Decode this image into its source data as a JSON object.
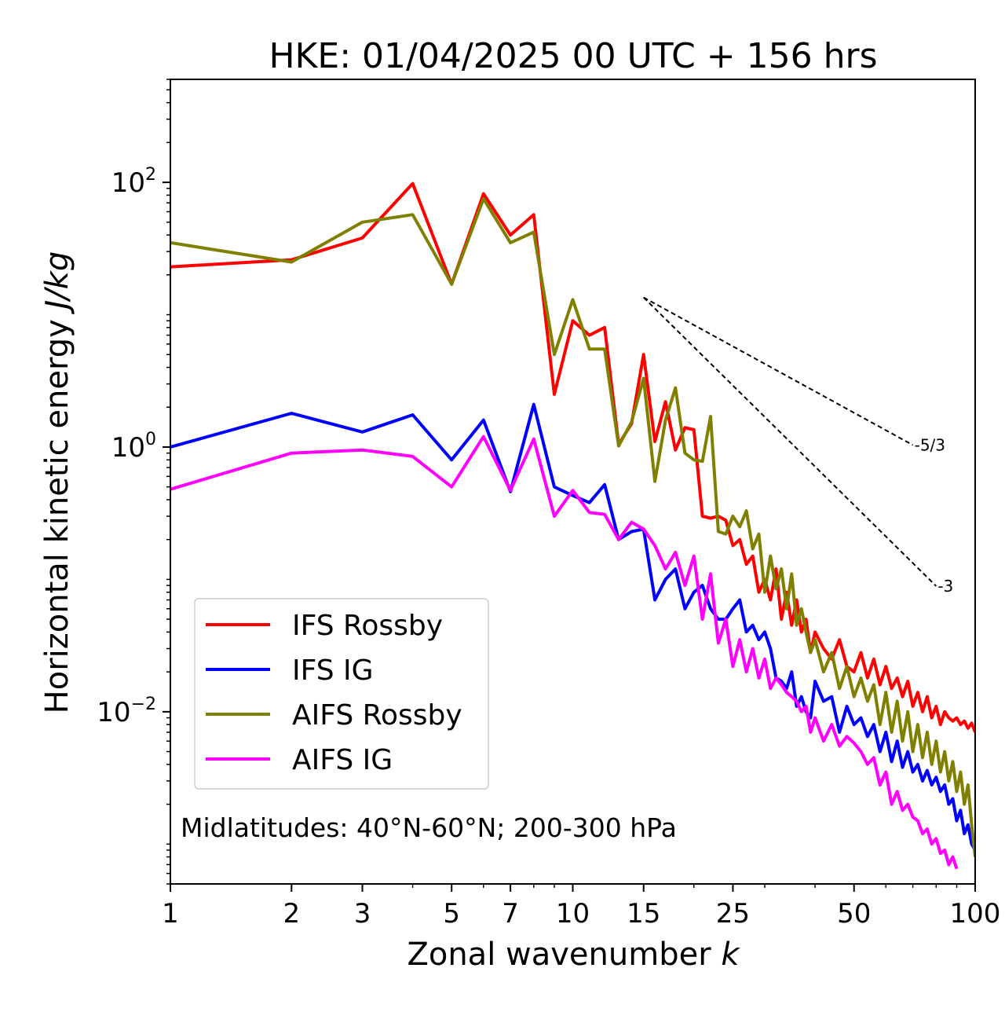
{
  "chart_data": {
    "type": "line",
    "title": "HKE: 01/04/2025 00 UTC + 156 hrs",
    "xlabel": "Zonal wavenumber",
    "xlabel_var": "k",
    "ylabel": "Horizontal kinetic energy",
    "ylabel_unit": "J/kg",
    "xscale": "log",
    "yscale": "log",
    "xlim": [
      1,
      100
    ],
    "ylim": [
      0.0005,
      600
    ],
    "xticks": [
      1,
      2,
      3,
      5,
      7,
      10,
      15,
      25,
      50,
      100
    ],
    "xtick_labels": [
      "1",
      "2",
      "3",
      "5",
      "7",
      "10",
      "15",
      "25",
      "50",
      "100"
    ],
    "yticks": [
      {
        "value": 100,
        "base": "10",
        "exp": "2"
      },
      {
        "value": 1,
        "base": "10",
        "exp": "0"
      },
      {
        "value": 0.01,
        "base": "10",
        "exp": "−2"
      }
    ],
    "grid": false,
    "legend_position": "lower-left",
    "annotation": "Midlatitudes: 40°N-60°N; 200-300 hPa",
    "reference_slopes": [
      {
        "label": "-5/3",
        "slope": -1.6667,
        "x_start": 15,
        "x_end": 70,
        "y_start": 13.5
      },
      {
        "label": "-3",
        "slope": -3,
        "x_start": 15,
        "x_end": 80,
        "y_start": 13.5
      }
    ],
    "series": [
      {
        "name": "IFS Rossby",
        "color": "#ff0000",
        "x": [
          1,
          2,
          3,
          4,
          5,
          6,
          7,
          8,
          9,
          10,
          11,
          12,
          13,
          14,
          15,
          16,
          17,
          18,
          19,
          20,
          21,
          22,
          23,
          24,
          25,
          26,
          27,
          28,
          29,
          30,
          31,
          32,
          33,
          34,
          35,
          36,
          37,
          38,
          39,
          40,
          42,
          44,
          46,
          48,
          50,
          52,
          54,
          56,
          58,
          60,
          62,
          64,
          66,
          68,
          70,
          72,
          74,
          76,
          78,
          80,
          82,
          84,
          86,
          88,
          90,
          92,
          94,
          96,
          98,
          100
        ],
        "y": [
          23,
          26,
          38,
          98,
          17,
          82,
          40,
          57,
          2.5,
          9,
          7,
          8,
          1.05,
          1.5,
          5,
          1.1,
          2.2,
          0.95,
          1.4,
          1.35,
          0.3,
          0.29,
          0.3,
          0.28,
          0.18,
          0.2,
          0.13,
          0.15,
          0.08,
          0.1,
          0.07,
          0.12,
          0.05,
          0.08,
          0.045,
          0.07,
          0.04,
          0.05,
          0.028,
          0.04,
          0.03,
          0.025,
          0.035,
          0.022,
          0.02,
          0.028,
          0.018,
          0.025,
          0.016,
          0.022,
          0.015,
          0.018,
          0.013,
          0.017,
          0.011,
          0.014,
          0.01,
          0.013,
          0.009,
          0.011,
          0.008,
          0.01,
          0.009,
          0.0085,
          0.009,
          0.008,
          0.0085,
          0.0075,
          0.0082,
          0.007
        ]
      },
      {
        "name": "IFS IG",
        "color": "#0000ff",
        "x": [
          1,
          2,
          3,
          4,
          5,
          6,
          7,
          8,
          9,
          10,
          11,
          12,
          13,
          14,
          15,
          16,
          17,
          18,
          19,
          20,
          21,
          22,
          23,
          24,
          25,
          26,
          27,
          28,
          29,
          30,
          31,
          32,
          33,
          34,
          35,
          36,
          37,
          38,
          39,
          40,
          42,
          44,
          46,
          48,
          50,
          52,
          54,
          56,
          58,
          60,
          62,
          64,
          66,
          68,
          70,
          72,
          74,
          76,
          78,
          80,
          82,
          84,
          86,
          88,
          90,
          92,
          94,
          96,
          98,
          100
        ],
        "y": [
          1,
          1.8,
          1.3,
          1.75,
          0.8,
          1.6,
          0.46,
          2.1,
          0.5,
          0.43,
          0.38,
          0.52,
          0.2,
          0.23,
          0.24,
          0.07,
          0.1,
          0.12,
          0.06,
          0.08,
          0.09,
          0.06,
          0.05,
          0.05,
          0.06,
          0.07,
          0.04,
          0.045,
          0.035,
          0.04,
          0.03,
          0.018,
          0.017,
          0.015,
          0.02,
          0.011,
          0.013,
          0.01,
          0.009,
          0.017,
          0.012,
          0.013,
          0.007,
          0.011,
          0.008,
          0.009,
          0.0065,
          0.008,
          0.005,
          0.007,
          0.0042,
          0.006,
          0.0038,
          0.005,
          0.0035,
          0.004,
          0.003,
          0.0036,
          0.0028,
          0.0032,
          0.0025,
          0.0028,
          0.002,
          0.0022,
          0.0015,
          0.0018,
          0.0012,
          0.0014,
          0.001,
          0.0009
        ]
      },
      {
        "name": "AIFS Rossby",
        "color": "#808000",
        "x": [
          1,
          2,
          3,
          4,
          5,
          6,
          7,
          8,
          9,
          10,
          11,
          12,
          13,
          14,
          15,
          16,
          17,
          18,
          19,
          20,
          21,
          22,
          23,
          24,
          25,
          26,
          27,
          28,
          29,
          30,
          31,
          32,
          33,
          34,
          35,
          36,
          37,
          38,
          39,
          40,
          42,
          44,
          46,
          48,
          50,
          52,
          54,
          56,
          58,
          60,
          62,
          64,
          66,
          68,
          70,
          72,
          74,
          76,
          78,
          80,
          82,
          84,
          86,
          88,
          90,
          92,
          94,
          96,
          98,
          100
        ],
        "y": [
          35,
          25,
          50,
          57,
          17,
          75,
          35,
          42,
          5,
          13,
          5.5,
          5.5,
          1.02,
          1.55,
          3.3,
          0.55,
          1.6,
          2.8,
          0.9,
          0.8,
          0.78,
          1.7,
          0.23,
          0.22,
          0.3,
          0.25,
          0.33,
          0.17,
          0.22,
          0.08,
          0.15,
          0.085,
          0.12,
          0.06,
          0.11,
          0.045,
          0.06,
          0.04,
          0.028,
          0.035,
          0.02,
          0.028,
          0.015,
          0.022,
          0.013,
          0.018,
          0.012,
          0.016,
          0.008,
          0.014,
          0.007,
          0.012,
          0.006,
          0.01,
          0.005,
          0.008,
          0.0045,
          0.007,
          0.004,
          0.006,
          0.0035,
          0.005,
          0.003,
          0.0042,
          0.0025,
          0.0035,
          0.002,
          0.0028,
          0.0014,
          0.0008
        ]
      },
      {
        "name": "AIFS IG",
        "color": "#ff00ff",
        "x": [
          1,
          2,
          3,
          4,
          5,
          6,
          7,
          8,
          9,
          10,
          11,
          12,
          13,
          14,
          15,
          16,
          17,
          18,
          19,
          20,
          21,
          22,
          23,
          24,
          25,
          26,
          27,
          28,
          29,
          30,
          31,
          32,
          33,
          34,
          35,
          36,
          37,
          38,
          39,
          40,
          42,
          44,
          46,
          48,
          50,
          52,
          54,
          56,
          58,
          60,
          62,
          64,
          66,
          68,
          70,
          72,
          74,
          76,
          78,
          80,
          82,
          84,
          86,
          88,
          90
        ],
        "y": [
          0.48,
          0.9,
          0.95,
          0.85,
          0.5,
          1.2,
          0.47,
          1.15,
          0.3,
          0.47,
          0.32,
          0.31,
          0.2,
          0.27,
          0.24,
          0.18,
          0.12,
          0.16,
          0.09,
          0.15,
          0.05,
          0.11,
          0.033,
          0.05,
          0.022,
          0.035,
          0.02,
          0.03,
          0.018,
          0.025,
          0.015,
          0.018,
          0.016,
          0.014,
          0.013,
          0.012,
          0.01,
          0.011,
          0.007,
          0.009,
          0.006,
          0.008,
          0.0055,
          0.0065,
          0.0058,
          0.005,
          0.004,
          0.0045,
          0.0028,
          0.0035,
          0.002,
          0.0025,
          0.0018,
          0.002,
          0.0016,
          0.0015,
          0.0012,
          0.0013,
          0.001,
          0.0011,
          0.00085,
          0.0009,
          0.0007,
          0.0008,
          0.00065
        ]
      }
    ]
  }
}
